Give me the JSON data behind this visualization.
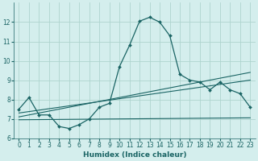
{
  "xlabel": "Humidex (Indice chaleur)",
  "bg_color": "#d4eeed",
  "grid_color": "#aed4cf",
  "line_color": "#1a6464",
  "xlim": [
    -0.5,
    23.5
  ],
  "ylim": [
    6,
    13
  ],
  "yticks": [
    6,
    7,
    8,
    9,
    10,
    11,
    12
  ],
  "xticks": [
    0,
    1,
    2,
    3,
    4,
    5,
    6,
    7,
    8,
    9,
    10,
    11,
    12,
    13,
    14,
    15,
    16,
    17,
    18,
    19,
    20,
    21,
    22,
    23
  ],
  "curve1_x": [
    0,
    1,
    2,
    3,
    4,
    5,
    6,
    7,
    8,
    9,
    10,
    11,
    12,
    13,
    14,
    15,
    16,
    17,
    18,
    19,
    20,
    21,
    22,
    23
  ],
  "curve1_y": [
    7.5,
    8.1,
    7.2,
    7.2,
    6.6,
    6.5,
    6.7,
    7.0,
    7.6,
    7.8,
    9.7,
    10.8,
    12.05,
    12.25,
    12.0,
    11.3,
    9.3,
    9.0,
    8.9,
    8.5,
    8.9,
    8.5,
    8.3,
    7.6
  ],
  "curve2_x": [
    0,
    23
  ],
  "curve2_y": [
    7.3,
    9.0
  ],
  "curve3_x": [
    0,
    23
  ],
  "curve3_y": [
    7.1,
    9.4
  ],
  "curve4_x": [
    0,
    23
  ],
  "curve4_y": [
    6.95,
    7.05
  ]
}
